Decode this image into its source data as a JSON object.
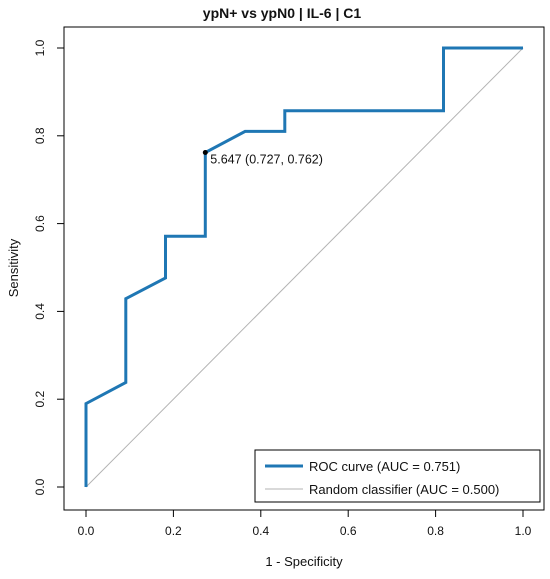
{
  "chart_data": {
    "type": "line",
    "title": "ypN+ vs ypN0 | IL-6 | C1",
    "xlabel": "1 - Specificity",
    "ylabel": "Sensitivity",
    "xlim": [
      0,
      1
    ],
    "ylim": [
      0,
      1
    ],
    "xticks": [
      "0.0",
      "0.2",
      "0.4",
      "0.6",
      "0.8",
      "1.0"
    ],
    "yticks": [
      "0.0",
      "0.2",
      "0.4",
      "0.6",
      "0.8",
      "1.0"
    ],
    "grid": false,
    "legend_position": "bottom-right",
    "series": [
      {
        "name": "ROC curve (AUC = 0.751)",
        "color": "#1f77b4",
        "x": [
          0,
          0,
          0.091,
          0.091,
          0.182,
          0.182,
          0.273,
          0.273,
          0.364,
          0.455,
          0.455,
          0.818,
          0.818,
          1.0
        ],
        "y": [
          0,
          0.19,
          0.238,
          0.429,
          0.476,
          0.571,
          0.571,
          0.762,
          0.81,
          0.81,
          0.857,
          0.857,
          1.0,
          1.0
        ]
      },
      {
        "name": "Random classifier (AUC = 0.500)",
        "color": "#b3b3b3",
        "x": [
          0,
          1
        ],
        "y": [
          0,
          1
        ]
      }
    ],
    "annotations": [
      {
        "text": "5.647 (0.727, 0.762)",
        "x": 0.273,
        "y": 0.762
      }
    ]
  }
}
